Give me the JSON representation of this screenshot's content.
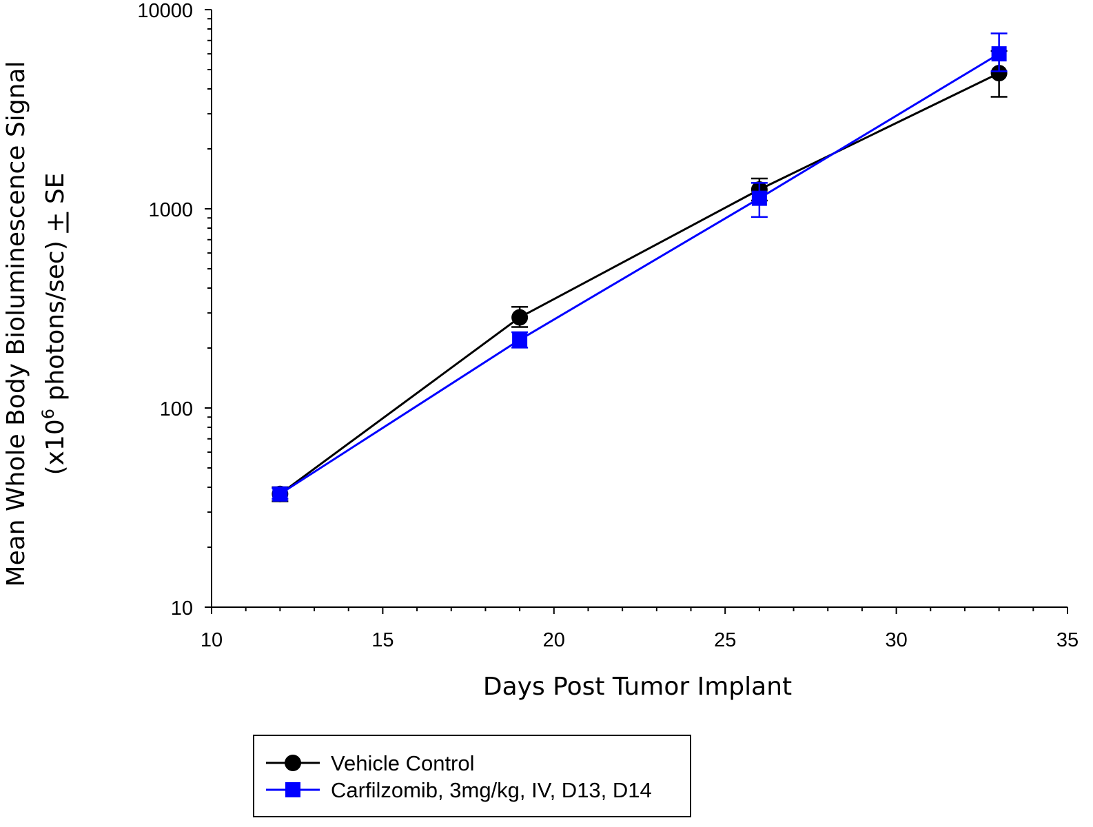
{
  "chart_data": {
    "type": "line",
    "xlabel": "Days Post Tumor Implant",
    "ylabel_line1": "Mean Whole Body Bioluminescence Signal",
    "ylabel_line2_prefix": "(x10",
    "ylabel_line2_sup": "6",
    "ylabel_line2_suffix": " photons/sec) ",
    "ylabel_pm_plus": "+",
    "ylabel_pm_tail": " SE",
    "xlim": [
      10,
      35
    ],
    "ylim": [
      10,
      10000
    ],
    "yscale": "log",
    "x_ticks": [
      10,
      15,
      20,
      25,
      30,
      35
    ],
    "x_tick_labels": [
      "10",
      "15",
      "20",
      "25",
      "30",
      "35"
    ],
    "y_ticks": [
      10,
      100,
      1000,
      10000
    ],
    "y_tick_labels": [
      "10",
      "100",
      "1000",
      "10000"
    ],
    "legend_position": "bottom",
    "series": [
      {
        "name": "Vehicle Control",
        "color": "#000000",
        "marker": "circle",
        "points": [
          {
            "x": 12,
            "y": 37,
            "err_low": 34,
            "err_high": 40
          },
          {
            "x": 19,
            "y": 285,
            "err_low": 255,
            "err_high": 322
          },
          {
            "x": 26,
            "y": 1250,
            "err_low": 1100,
            "err_high": 1420
          },
          {
            "x": 33,
            "y": 4800,
            "err_low": 3650,
            "err_high": 6200
          }
        ]
      },
      {
        "name": "Carfilzomib, 3mg/kg, IV, D13, D14",
        "color": "#0000ff",
        "marker": "square",
        "points": [
          {
            "x": 12,
            "y": 37,
            "err_low": 35,
            "err_high": 39.5
          },
          {
            "x": 19,
            "y": 220,
            "err_low": 201,
            "err_high": 240
          },
          {
            "x": 26,
            "y": 1130,
            "err_low": 910,
            "err_high": 1350
          },
          {
            "x": 33,
            "y": 6000,
            "err_low": 4900,
            "err_high": 7600
          }
        ]
      }
    ]
  }
}
